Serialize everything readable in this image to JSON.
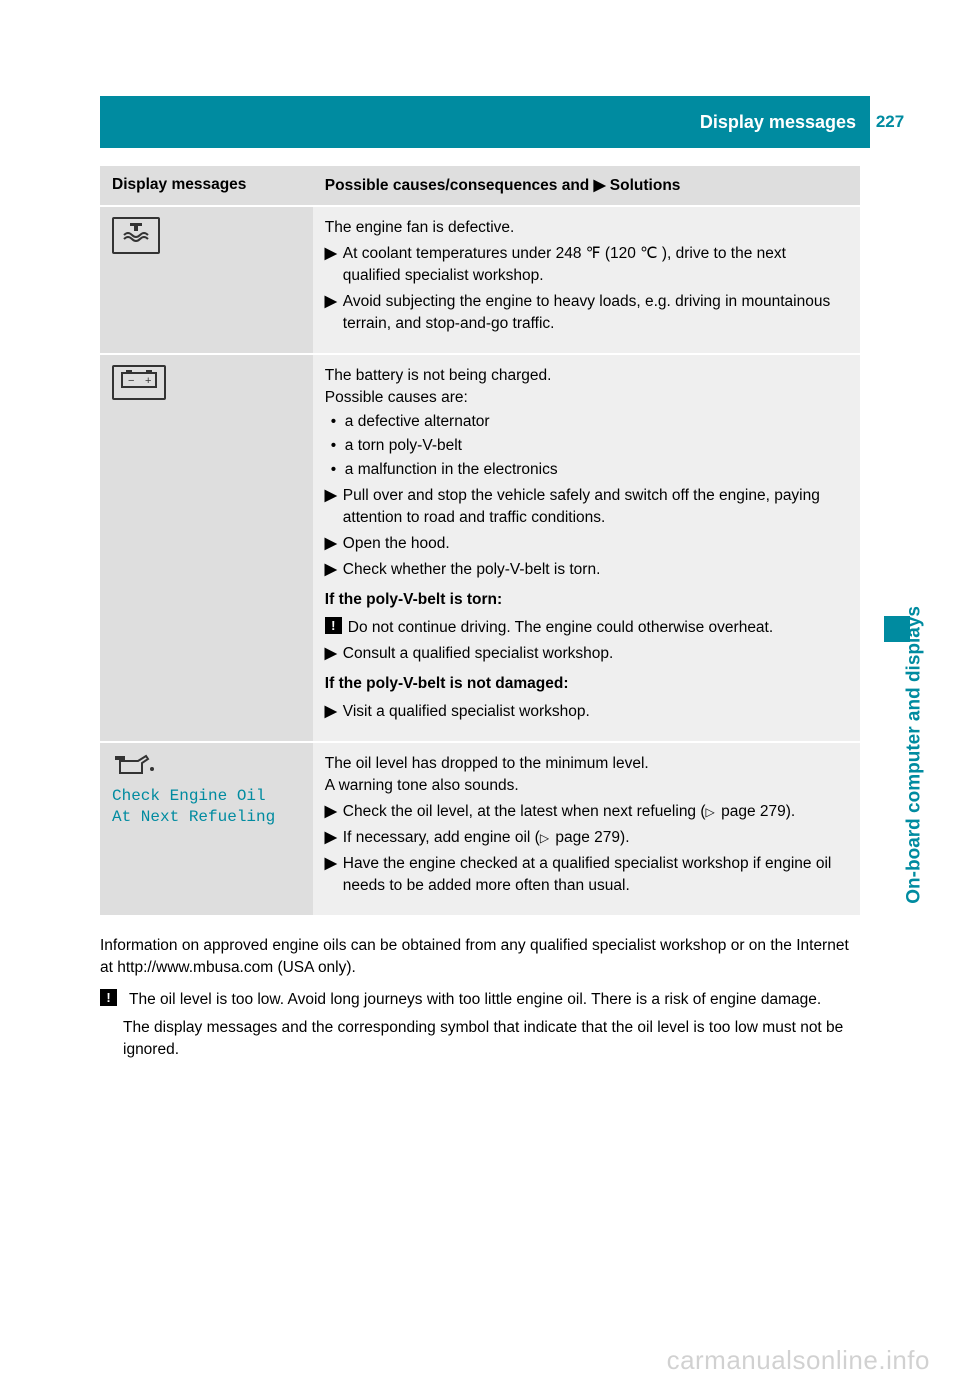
{
  "header": {
    "title": "Display messages",
    "page_number": "227",
    "side_tab": "On-board computer and displays"
  },
  "table": {
    "columns": [
      "Display messages",
      "Possible causes/consequences and ▶ Solutions"
    ],
    "rows": [
      {
        "icon": "coolant-fan-icon",
        "icon_glyph": "❄",
        "display_text": "",
        "body": {
          "intro": [
            "The engine fan is defective."
          ],
          "actions": [
            "At coolant temperatures under 248 ℉ (120 ℃ ), drive to the next qualified specialist workshop.",
            "Avoid subjecting the engine to heavy loads, e.g. driving in mountainous terrain, and stop-and-go traffic."
          ]
        }
      },
      {
        "icon": "battery-icon",
        "icon_glyph": "− +",
        "display_text": "",
        "body": {
          "intro": [
            "The battery is not being charged.",
            "Possible causes are:"
          ],
          "bullets": [
            "a defective alternator",
            "a torn poly-V-belt",
            "a malfunction in the electronics"
          ],
          "actions1": [
            "Pull over and stop the vehicle safely and switch off the engine, paying attention to road and traffic conditions.",
            "Open the hood.",
            "Check whether the poly-V-belt is torn."
          ],
          "sub1_title": "If the poly-V-belt is torn:",
          "sub1_warn": "Do not continue driving. The engine could otherwise overheat.",
          "sub1_actions": [
            "Consult a qualified specialist workshop."
          ],
          "sub2_title": "If the poly-V-belt is not damaged:",
          "sub2_actions": [
            "Visit a qualified specialist workshop."
          ]
        }
      },
      {
        "icon": "oil-can-icon",
        "icon_glyph": "🛢",
        "display_text": "Check Engine Oil\nAt Next Refueling",
        "body": {
          "intro": [
            "The oil level has dropped to the minimum level.",
            "A warning tone also sounds."
          ],
          "actions": [
            "Check the oil level, at the latest when next refueling ( page 279).",
            "If necessary, add engine oil ( page 279).",
            "Have the engine checked at a qualified specialist workshop if engine oil needs to be added more often than usual."
          ],
          "page_ref": "page 279"
        }
      }
    ]
  },
  "footer": {
    "para1": "Information on approved engine oils can be obtained from any qualified specialist workshop or on the Internet at http://www.mbusa.com (USA only).",
    "warn": "The oil level is too low. Avoid long journeys with too little engine oil. There is a risk of engine damage.",
    "para2": "The display messages and the corresponding symbol that indicate that the oil level is too low must not be ignored."
  },
  "watermark": "carmanualsonline.info",
  "colors": {
    "accent": "#008ba0",
    "header_bg_light": "#dedede",
    "row_bg": "#efefef"
  }
}
